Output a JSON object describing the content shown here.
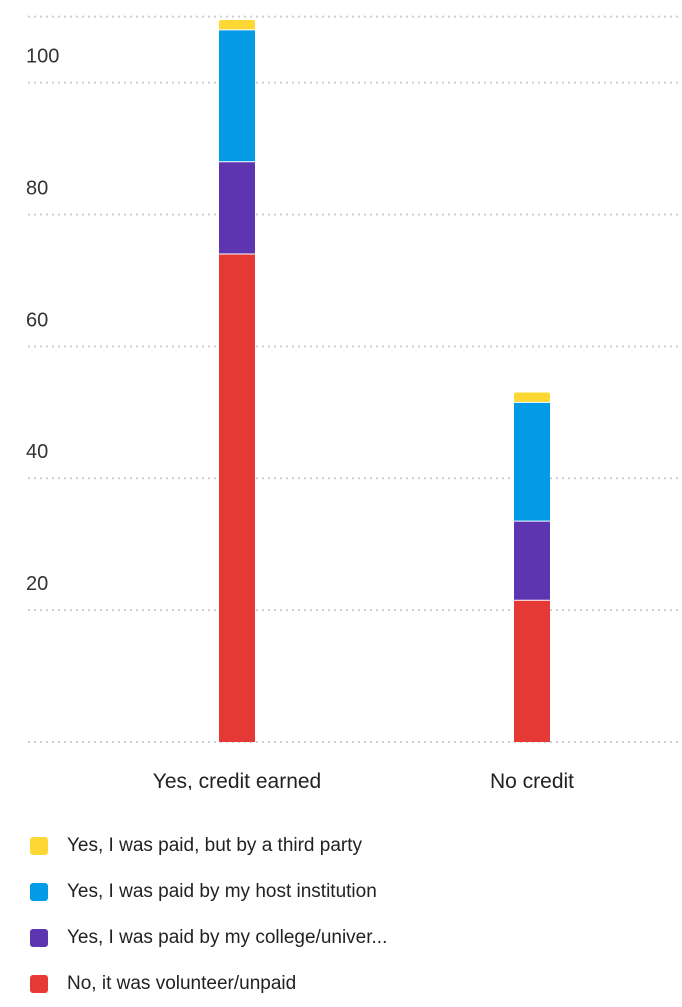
{
  "chart_data": {
    "type": "bar",
    "stacked": true,
    "categories": [
      "Yes, credit earned",
      "No credit"
    ],
    "series": [
      {
        "name": "No, it was volunteer/unpaid",
        "color": "#e53935",
        "values": [
          74,
          21.5
        ]
      },
      {
        "name": "Yes, I was paid by my college/univer...",
        "color": "#5e35b1",
        "values": [
          14,
          12
        ]
      },
      {
        "name": "Yes, I was paid by my host institution",
        "color": "#039be5",
        "values": [
          20,
          18
        ]
      },
      {
        "name": "Yes, I was paid, but by a third party",
        "color": "#fdd835",
        "values": [
          1.5,
          1.5
        ]
      }
    ],
    "yticks": [
      20,
      40,
      60,
      80,
      100
    ],
    "ylim": [
      0,
      110
    ],
    "grid": true,
    "legend_position": "bottom",
    "title": "",
    "xlabel": "",
    "ylabel": ""
  },
  "legend_order": [
    3,
    2,
    1,
    0
  ]
}
